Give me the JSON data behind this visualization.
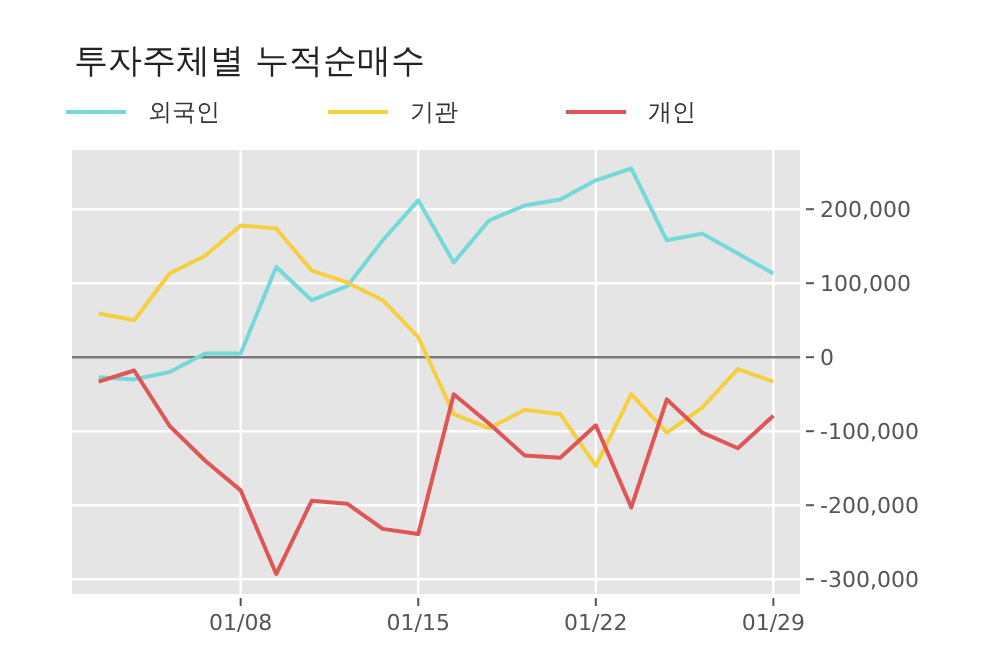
{
  "chart_data": {
    "type": "line",
    "title": "투자주체별 누적순매수",
    "categories": [
      null,
      null,
      null,
      null,
      "01/08",
      null,
      null,
      null,
      null,
      "01/15",
      null,
      null,
      null,
      null,
      "01/22",
      null,
      null,
      null,
      null,
      "01/29"
    ],
    "series": [
      {
        "name": "외국인",
        "color": "#76d9d9",
        "values": [
          -27000,
          -30000,
          -20000,
          5000,
          5000,
          122000,
          77000,
          96000,
          158000,
          212000,
          128000,
          185000,
          205000,
          213000,
          239000,
          255000,
          158000,
          167000,
          140000,
          113000
        ]
      },
      {
        "name": "기관",
        "color": "#f5cf3e",
        "values": [
          59000,
          50000,
          113000,
          137000,
          178000,
          174000,
          117000,
          101000,
          77000,
          27000,
          -77000,
          -96000,
          -71000,
          -77000,
          -147000,
          -50000,
          -102000,
          -68000,
          -16000,
          -33000
        ]
      },
      {
        "name": "개인",
        "color": "#e05555",
        "values": [
          -33000,
          -18000,
          -93000,
          -140000,
          -180000,
          -293000,
          -194000,
          -198000,
          -232000,
          -239000,
          -50000,
          -90000,
          -133000,
          -136000,
          -92000,
          -203000,
          -57000,
          -102000,
          -123000,
          -79000
        ]
      }
    ],
    "ylim": [
      -320000,
      280000
    ],
    "yticks": [
      {
        "value": -300000,
        "label": "-300,000"
      },
      {
        "value": -200000,
        "label": "-200,000"
      },
      {
        "value": -100000,
        "label": "-100,000"
      },
      0,
      {
        "value": 100000,
        "label": "100,000"
      },
      {
        "value": 200000,
        "label": "200,000"
      }
    ],
    "ref_lines": [
      {
        "axis": "y",
        "value": 0,
        "color": "#777777"
      }
    ],
    "grid": true,
    "legend": "top left",
    "marker": "none",
    "line_style": "solid"
  }
}
